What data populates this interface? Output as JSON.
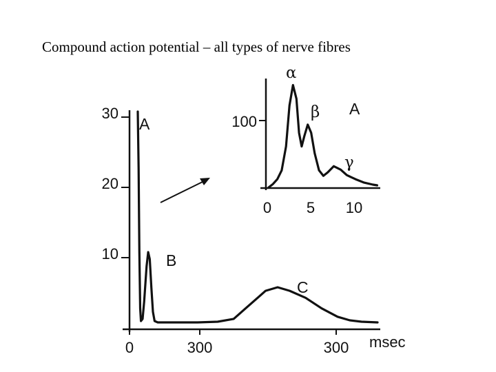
{
  "slide": {
    "title": "Compound action potential – all types of nerve fibres"
  },
  "chart_data": [
    {
      "type": "line",
      "title": "",
      "x_tick_labels": [
        "0",
        "300",
        "300"
      ],
      "xlabel": "msec",
      "y_ticks": [
        10,
        20,
        30
      ],
      "y_tick_labels": [
        "10",
        "20",
        "30"
      ],
      "ylim": [
        0,
        30
      ],
      "peaks": [
        {
          "label": "A",
          "amplitude": 30
        },
        {
          "label": "B",
          "amplitude": 10
        },
        {
          "label": "C",
          "amplitude": 5
        }
      ],
      "series": [
        {
          "points": [
            [
              0,
              30
            ],
            [
              2,
              22
            ],
            [
              4,
              10
            ],
            [
              6,
              2
            ],
            [
              8,
              0.2
            ],
            [
              12,
              0.5
            ],
            [
              16,
              3
            ],
            [
              22,
              8
            ],
            [
              26,
              10
            ],
            [
              30,
              9
            ],
            [
              34,
              5
            ],
            [
              38,
              1.5
            ],
            [
              42,
              0.2
            ],
            [
              50,
              0
            ],
            [
              80,
              0
            ],
            [
              150,
              0
            ],
            [
              200,
              0.1
            ],
            [
              240,
              0.5
            ],
            [
              270,
              2
            ],
            [
              300,
              3.5
            ],
            [
              320,
              4.5
            ],
            [
              350,
              5
            ],
            [
              380,
              4.5
            ],
            [
              420,
              3.5
            ],
            [
              460,
              2
            ],
            [
              500,
              0.8
            ],
            [
              530,
              0.3
            ],
            [
              560,
              0.1
            ],
            [
              600,
              0
            ]
          ]
        }
      ]
    },
    {
      "type": "line",
      "title": "",
      "xlabel": "",
      "x_ticks": [
        0,
        5,
        10
      ],
      "x_tick_labels": [
        "0",
        "5",
        "10"
      ],
      "xlim": [
        0,
        12.5
      ],
      "y_tick_labels": [
        "100"
      ],
      "y_ticks": [
        100
      ],
      "ylim": [
        0,
        160
      ],
      "corner_label": "A",
      "peaks": [
        {
          "label": "α",
          "x": 2.8,
          "y": 150
        },
        {
          "label": "β",
          "x": 4.5,
          "y": 92
        },
        {
          "label": "γ",
          "x": 7.5,
          "y": 31
        }
      ],
      "series": [
        {
          "points": [
            [
              0,
              0
            ],
            [
              0.5,
              5
            ],
            [
              1,
              12
            ],
            [
              1.5,
              25
            ],
            [
              2,
              60
            ],
            [
              2.4,
              120
            ],
            [
              2.8,
              150
            ],
            [
              3.2,
              130
            ],
            [
              3.5,
              80
            ],
            [
              3.8,
              60
            ],
            [
              4.1,
              75
            ],
            [
              4.5,
              92
            ],
            [
              4.9,
              80
            ],
            [
              5.3,
              50
            ],
            [
              5.8,
              25
            ],
            [
              6.3,
              17
            ],
            [
              6.8,
              22
            ],
            [
              7.5,
              31
            ],
            [
              8.3,
              26
            ],
            [
              9,
              18
            ],
            [
              10,
              12
            ],
            [
              11,
              7
            ],
            [
              12,
              4
            ],
            [
              12.5,
              3
            ]
          ]
        }
      ]
    }
  ]
}
